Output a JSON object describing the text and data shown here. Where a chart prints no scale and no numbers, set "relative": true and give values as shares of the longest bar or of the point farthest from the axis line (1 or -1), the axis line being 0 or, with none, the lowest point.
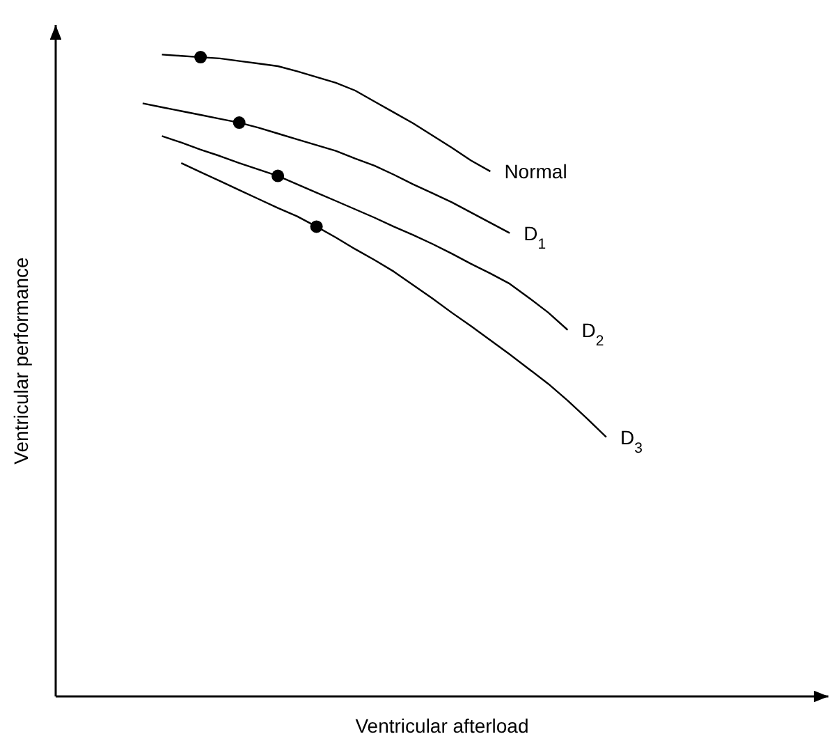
{
  "chart_data": {
    "type": "line",
    "relative": true,
    "xlabel": "Ventricular afterload",
    "ylabel": "Ventricular performance",
    "marker": "none",
    "line_style": "solid",
    "categories": [
      null,
      null,
      null,
      null,
      null,
      null,
      null,
      null,
      null,
      null,
      null,
      null,
      null,
      null,
      null,
      null,
      null,
      null,
      null,
      null,
      null,
      null,
      null,
      null,
      null,
      null,
      null,
      null,
      null,
      null,
      null,
      null,
      null,
      null,
      null,
      null,
      null,
      null,
      null,
      null
    ],
    "series": [
      {
        "name": "Normal",
        "color": "#000000",
        "values": [
          null,
          null,
          null,
          null,
          null,
          1.0,
          0.998,
          0.996,
          0.994,
          0.99,
          0.986,
          0.982,
          0.974,
          0.965,
          0.956,
          0.944,
          0.927,
          0.91,
          0.893,
          0.874,
          0.855,
          0.835,
          0.818,
          null,
          null,
          null,
          null,
          null,
          null,
          null,
          null,
          null,
          null,
          null,
          null,
          null,
          null,
          null,
          null,
          null
        ]
      },
      {
        "name": "D$_{1}$",
        "color": "#000000",
        "values": [
          null,
          null,
          null,
          null,
          0.924,
          0.918,
          0.912,
          0.906,
          0.9,
          0.894,
          0.886,
          0.877,
          0.868,
          0.859,
          0.85,
          0.838,
          0.827,
          0.813,
          0.798,
          0.784,
          0.77,
          0.754,
          0.738,
          0.722,
          null,
          null,
          null,
          null,
          null,
          null,
          null,
          null,
          null,
          null,
          null,
          null,
          null,
          null,
          null,
          null
        ]
      },
      {
        "name": "D$_{2}$",
        "color": "#000000",
        "values": [
          null,
          null,
          null,
          null,
          null,
          0.873,
          0.863,
          0.852,
          0.842,
          0.831,
          0.821,
          0.811,
          0.798,
          0.785,
          0.772,
          0.759,
          0.746,
          0.732,
          0.719,
          0.705,
          0.69,
          0.674,
          0.659,
          0.643,
          0.621,
          0.598,
          0.571,
          null,
          null,
          null,
          null,
          null,
          null,
          null,
          null,
          null,
          null,
          null,
          null,
          null
        ]
      },
      {
        "name": "D$_{3}$",
        "color": "#000000",
        "values": [
          null,
          null,
          null,
          null,
          null,
          null,
          0.831,
          0.817,
          0.803,
          0.789,
          0.775,
          0.761,
          0.748,
          0.732,
          0.715,
          0.697,
          0.68,
          0.662,
          0.641,
          0.62,
          0.598,
          0.577,
          0.555,
          0.533,
          0.51,
          0.487,
          0.461,
          0.433,
          0.404,
          null,
          null,
          null,
          null,
          null,
          null,
          null,
          null,
          null,
          null,
          null
        ]
      }
    ]
  }
}
